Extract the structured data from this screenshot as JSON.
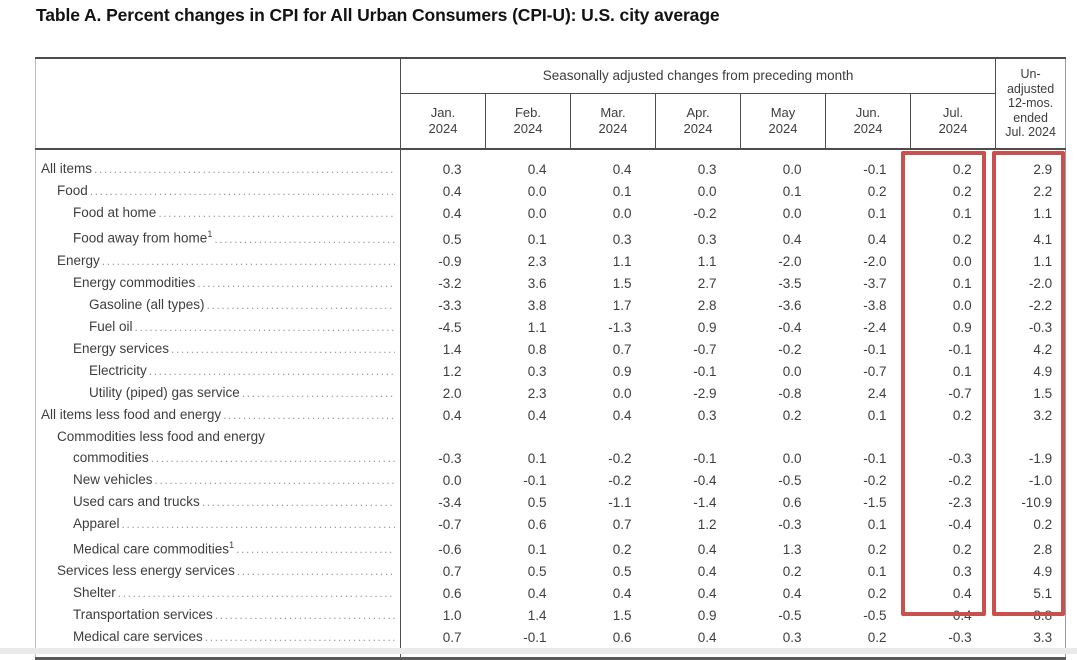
{
  "title": "Table A. Percent changes in CPI for All Urban Consumers (CPI-U): U.S. city average",
  "chart_data": {
    "type": "table",
    "group_header": "Seasonally adjusted changes from preceding month",
    "columns": [
      "Jan. 2024",
      "Feb. 2024",
      "Mar. 2024",
      "Apr. 2024",
      "May 2024",
      "Jun. 2024",
      "Jul. 2024"
    ],
    "last_column": "Un-adjusted 12-mos. ended Jul. 2024",
    "last_column_lines": [
      "Un-",
      "adjusted",
      "12-mos.",
      "ended",
      "Jul. 2024"
    ],
    "rows": [
      {
        "label": "All items",
        "indent": 0,
        "values": [
          "0.3",
          "0.4",
          "0.4",
          "0.3",
          "0.0",
          "-0.1",
          "0.2",
          "2.9"
        ]
      },
      {
        "label": "Food",
        "indent": 1,
        "values": [
          "0.4",
          "0.0",
          "0.1",
          "0.0",
          "0.1",
          "0.2",
          "0.2",
          "2.2"
        ]
      },
      {
        "label": "Food at home",
        "indent": 2,
        "values": [
          "0.4",
          "0.0",
          "0.0",
          "-0.2",
          "0.0",
          "0.1",
          "0.1",
          "1.1"
        ]
      },
      {
        "label": "Food away from home",
        "footnote": "1",
        "indent": 2,
        "values": [
          "0.5",
          "0.1",
          "0.3",
          "0.3",
          "0.4",
          "0.4",
          "0.2",
          "4.1"
        ]
      },
      {
        "label": "Energy",
        "indent": 1,
        "values": [
          "-0.9",
          "2.3",
          "1.1",
          "1.1",
          "-2.0",
          "-2.0",
          "0.0",
          "1.1"
        ]
      },
      {
        "label": "Energy commodities",
        "indent": 2,
        "values": [
          "-3.2",
          "3.6",
          "1.5",
          "2.7",
          "-3.5",
          "-3.7",
          "0.1",
          "-2.0"
        ]
      },
      {
        "label": "Gasoline (all types)",
        "indent": 3,
        "values": [
          "-3.3",
          "3.8",
          "1.7",
          "2.8",
          "-3.6",
          "-3.8",
          "0.0",
          "-2.2"
        ]
      },
      {
        "label": "Fuel oil",
        "indent": 3,
        "values": [
          "-4.5",
          "1.1",
          "-1.3",
          "0.9",
          "-0.4",
          "-2.4",
          "0.9",
          "-0.3"
        ]
      },
      {
        "label": "Energy services",
        "indent": 2,
        "values": [
          "1.4",
          "0.8",
          "0.7",
          "-0.7",
          "-0.2",
          "-0.1",
          "-0.1",
          "4.2"
        ]
      },
      {
        "label": "Electricity",
        "indent": 3,
        "values": [
          "1.2",
          "0.3",
          "0.9",
          "-0.1",
          "0.0",
          "-0.7",
          "0.1",
          "4.9"
        ]
      },
      {
        "label": "Utility (piped) gas service",
        "indent": 3,
        "values": [
          "2.0",
          "2.3",
          "0.0",
          "-2.9",
          "-0.8",
          "2.4",
          "-0.7",
          "1.5"
        ]
      },
      {
        "label": "All items less food and energy",
        "indent": 0,
        "values": [
          "0.4",
          "0.4",
          "0.4",
          "0.3",
          "0.2",
          "0.1",
          "0.2",
          "3.2"
        ]
      },
      {
        "label": "Commodities less food and energy",
        "label2": "commodities",
        "indent": 1,
        "values": [
          "-0.3",
          "0.1",
          "-0.2",
          "-0.1",
          "0.0",
          "-0.1",
          "-0.3",
          "-1.9"
        ]
      },
      {
        "label": "New vehicles",
        "indent": 2,
        "values": [
          "0.0",
          "-0.1",
          "-0.2",
          "-0.4",
          "-0.5",
          "-0.2",
          "-0.2",
          "-1.0"
        ]
      },
      {
        "label": "Used cars and trucks",
        "indent": 2,
        "values": [
          "-3.4",
          "0.5",
          "-1.1",
          "-1.4",
          "0.6",
          "-1.5",
          "-2.3",
          "-10.9"
        ]
      },
      {
        "label": "Apparel",
        "indent": 2,
        "values": [
          "-0.7",
          "0.6",
          "0.7",
          "1.2",
          "-0.3",
          "0.1",
          "-0.4",
          "0.2"
        ]
      },
      {
        "label": "Medical care commodities",
        "footnote": "1",
        "indent": 2,
        "values": [
          "-0.6",
          "0.1",
          "0.2",
          "0.4",
          "1.3",
          "0.2",
          "0.2",
          "2.8"
        ]
      },
      {
        "label": "Services less energy services",
        "indent": 1,
        "values": [
          "0.7",
          "0.5",
          "0.5",
          "0.4",
          "0.2",
          "0.1",
          "0.3",
          "4.9"
        ]
      },
      {
        "label": "Shelter",
        "indent": 2,
        "values": [
          "0.6",
          "0.4",
          "0.4",
          "0.4",
          "0.4",
          "0.2",
          "0.4",
          "5.1"
        ]
      },
      {
        "label": "Transportation services",
        "indent": 2,
        "values": [
          "1.0",
          "1.4",
          "1.5",
          "0.9",
          "-0.5",
          "-0.5",
          "0.4",
          "8.8"
        ]
      },
      {
        "label": "Medical care services",
        "indent": 2,
        "values": [
          "0.7",
          "-0.1",
          "0.6",
          "0.4",
          "0.3",
          "0.2",
          "-0.3",
          "3.3"
        ]
      }
    ],
    "highlight": {
      "color": "#c9504c",
      "highlighted_columns": [
        "Jul. 2024",
        "Un-adjusted 12-mos. ended Jul. 2024"
      ]
    }
  }
}
